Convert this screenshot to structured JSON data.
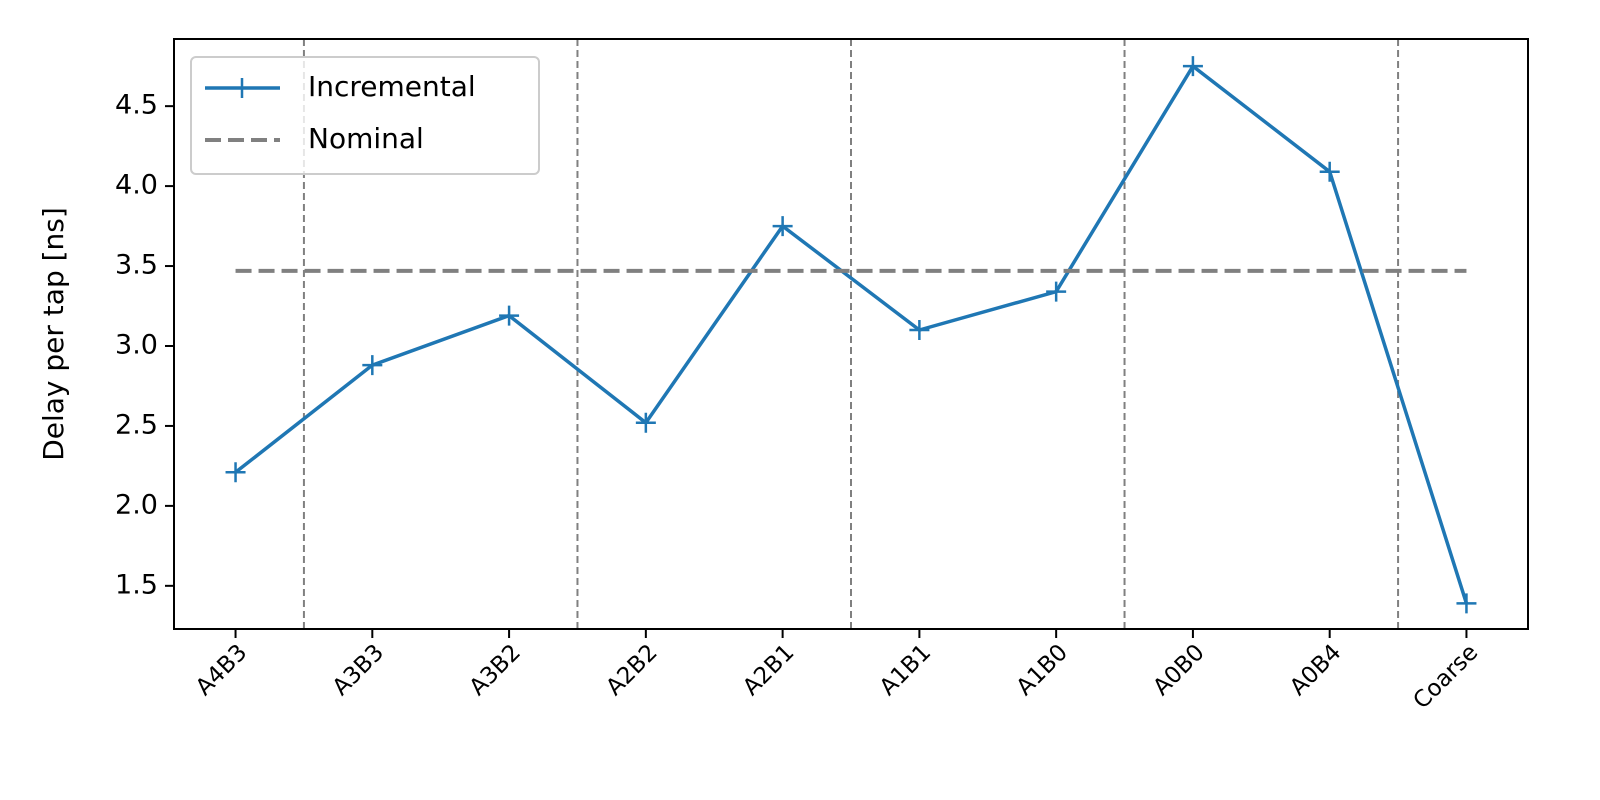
{
  "chart_data": {
    "type": "line",
    "ylabel": "Delay per tap [ns]",
    "categories": [
      "A4B3",
      "A3B3",
      "A3B2",
      "A2B2",
      "A2B1",
      "A1B1",
      "A1B0",
      "A0B0",
      "A0B4",
      "Coarse"
    ],
    "series": [
      {
        "name": "Incremental",
        "color": "#1f77b4",
        "style": "solid",
        "marker": "+",
        "values": [
          2.21,
          2.88,
          3.19,
          2.52,
          3.75,
          3.1,
          3.34,
          4.75,
          4.09,
          1.39
        ]
      },
      {
        "name": "Nominal",
        "color": "#808080",
        "style": "dashed",
        "marker": "none",
        "values": [
          3.47,
          3.47,
          3.47,
          3.47,
          3.47,
          3.47,
          3.47,
          3.47,
          3.47,
          3.47
        ]
      }
    ],
    "group_boundaries": [
      0.5,
      2.5,
      4.5,
      6.5,
      8.5
    ],
    "ylim": [
      1.23,
      4.92
    ],
    "yticks": [
      1.5,
      {
        "value": 2,
        "label": "2.0"
      },
      2.5,
      {
        "value": 3,
        "label": "3.0"
      },
      3.5,
      {
        "value": 4,
        "label": "4.0"
      },
      4.5
    ],
    "grid": false,
    "legend": "upper left"
  }
}
